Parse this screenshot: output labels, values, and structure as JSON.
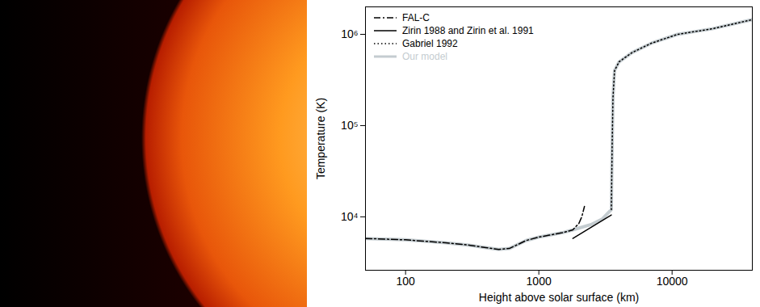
{
  "chart_data": {
    "type": "line",
    "x_label": "Height above solar surface (km)",
    "y_label": "Temperature (K)",
    "log": true,
    "legend": "top-left",
    "grid": false,
    "xlim": [
      50,
      40000
    ],
    "xticks": [
      100,
      1000,
      10000
    ],
    "ylim": [
      2600,
      2000000
    ],
    "yticks": [
      {
        "value": 10000,
        "label": "10⁴"
      },
      {
        "value": 100000,
        "label": "10⁵"
      },
      {
        "value": 1000000,
        "label": "10⁶"
      }
    ],
    "series": [
      {
        "name": "FAL-C",
        "color": "#000000",
        "line_style": "dashdot",
        "x": [
          50,
          100,
          200,
          300,
          400,
          500,
          600,
          700,
          800,
          1000,
          1200,
          1500,
          1800,
          2000,
          2100,
          2200
        ],
        "values": [
          5800,
          5600,
          5200,
          4900,
          4600,
          4400,
          4500,
          5000,
          5500,
          6000,
          6300,
          6700,
          7200,
          8500,
          10000,
          13000
        ]
      },
      {
        "name": "Zirin 1988 and Zirin et al. 1991",
        "color": "#000000",
        "line_style": "solid",
        "x": [
          1800,
          3500
        ],
        "values": [
          5800,
          10500
        ]
      },
      {
        "name": "Gabriel 1992",
        "color": "#000000",
        "line_style": "dotted",
        "x": [
          3500,
          3550,
          3600,
          3700,
          4000,
          5000,
          7000,
          11000,
          20000,
          40000
        ],
        "values": [
          12000,
          60000,
          200000,
          400000,
          500000,
          630000,
          800000,
          1000000,
          1150000,
          1450000
        ]
      },
      {
        "name": "Our model",
        "color": "#c4ccd0",
        "line_style": "solid",
        "x": [
          50,
          100,
          200,
          300,
          400,
          500,
          600,
          700,
          800,
          1000,
          1200,
          1500,
          1800,
          2500,
          3000,
          3500,
          3550,
          3600,
          3700,
          4000,
          5000,
          7000,
          11000,
          20000,
          40000
        ],
        "values": [
          5800,
          5600,
          5200,
          4900,
          4600,
          4400,
          4500,
          5000,
          5500,
          6000,
          6300,
          6700,
          7200,
          8300,
          9500,
          12000,
          60000,
          200000,
          400000,
          500000,
          630000,
          800000,
          1000000,
          1150000,
          1450000
        ]
      }
    ]
  }
}
